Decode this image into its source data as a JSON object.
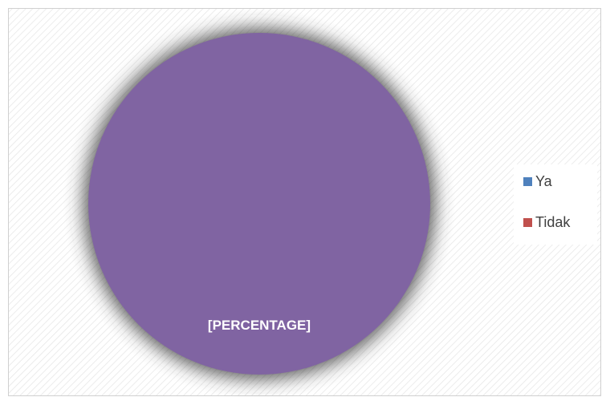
{
  "chart_data": {
    "type": "pie",
    "categories": [
      "Ya",
      "Tidak",
      null
    ],
    "values": [
      0,
      0,
      100
    ],
    "colors": [
      "#4f81bd",
      "#c0504d",
      "#8064a2"
    ],
    "data_label": "[PERCENTAGE]",
    "legend": "right"
  }
}
